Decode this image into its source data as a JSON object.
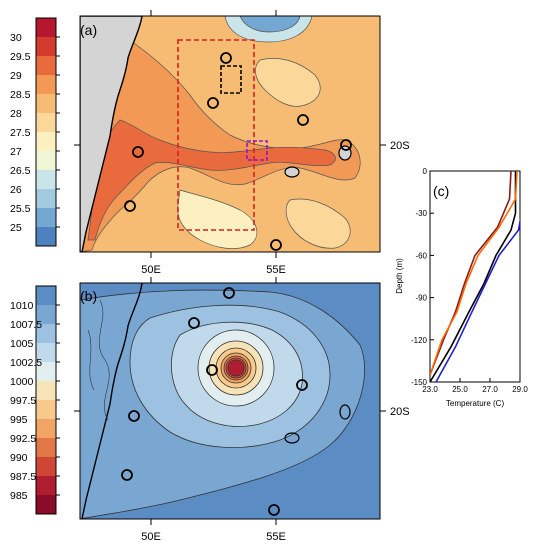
{
  "panel_a": {
    "label": "(a)",
    "colorbar_ticks": [
      "30",
      "29.5",
      "29",
      "28.5",
      "28",
      "27.5",
      "27",
      "26.5",
      "26",
      "25.5",
      "25"
    ],
    "colorbar_colors": [
      "#b5172e",
      "#d53a2e",
      "#e96a3c",
      "#f29a55",
      "#f7bc73",
      "#fbd89a",
      "#fdf0c0",
      "#eef6d6",
      "#c9e5ea",
      "#a2cbe0",
      "#74a8d2",
      "#4e81bf"
    ],
    "lon_ticks": [
      "50E",
      "55E"
    ],
    "lat_tick": "20S"
  },
  "panel_b": {
    "label": "(b)",
    "colorbar_ticks": [
      "1010",
      "1007.5",
      "1005",
      "1002.5",
      "1000",
      "997.5",
      "995",
      "992.5",
      "990",
      "987.5",
      "985"
    ],
    "colorbar_colors": [
      "#5b8cc4",
      "#7aa6d2",
      "#9dc1e0",
      "#c0daec",
      "#e3eef0",
      "#f7e3b8",
      "#f7c98a",
      "#f0a564",
      "#e27847",
      "#cf4634",
      "#b01d30",
      "#8a0c28"
    ],
    "lon_ticks": [
      "50E",
      "55E"
    ],
    "lat_tick": "20S"
  },
  "panel_c": {
    "label": "(c)",
    "y_axis_title": "Depth (m)",
    "x_axis_title": "Temperature (C)",
    "y_ticks": [
      "0",
      "-30",
      "-60",
      "-90",
      "-120",
      "-150"
    ],
    "x_ticks": [
      "23.0",
      "25.0",
      "27.0",
      "29.0"
    ]
  },
  "chart_data": {
    "type": "line",
    "xlabel": "Temperature (C)",
    "ylabel": "Depth (m)",
    "xlim": [
      23.0,
      29.0
    ],
    "ylim": [
      -150,
      0
    ],
    "series": [
      {
        "color": "#000000",
        "x": [
          28.7,
          28.7,
          28.4,
          27.4,
          26.6,
          25.6,
          24.4,
          23.0
        ],
        "y": [
          0,
          -30,
          -42,
          -60,
          -80,
          -100,
          -125,
          -150
        ]
      },
      {
        "color": "#1f1fcf",
        "x": [
          29.1,
          29.1,
          28.9,
          27.6,
          26.7,
          25.8,
          24.7,
          23.4
        ],
        "y": [
          0,
          -30,
          -42,
          -60,
          -80,
          -100,
          -125,
          -150
        ]
      },
      {
        "color": "#8b1a1a",
        "x": [
          28.4,
          28.3,
          27.5,
          26.0,
          25.3,
          24.7,
          23.9,
          23.0
        ],
        "y": [
          0,
          -20,
          -40,
          -60,
          -80,
          -100,
          -120,
          -145
        ]
      },
      {
        "color": "#ff6a00",
        "x": [
          28.8,
          28.7,
          27.6,
          26.2,
          25.4,
          24.8,
          23.8,
          23.0
        ],
        "y": [
          0,
          -20,
          -40,
          -60,
          -80,
          -100,
          -120,
          -145
        ]
      }
    ]
  }
}
